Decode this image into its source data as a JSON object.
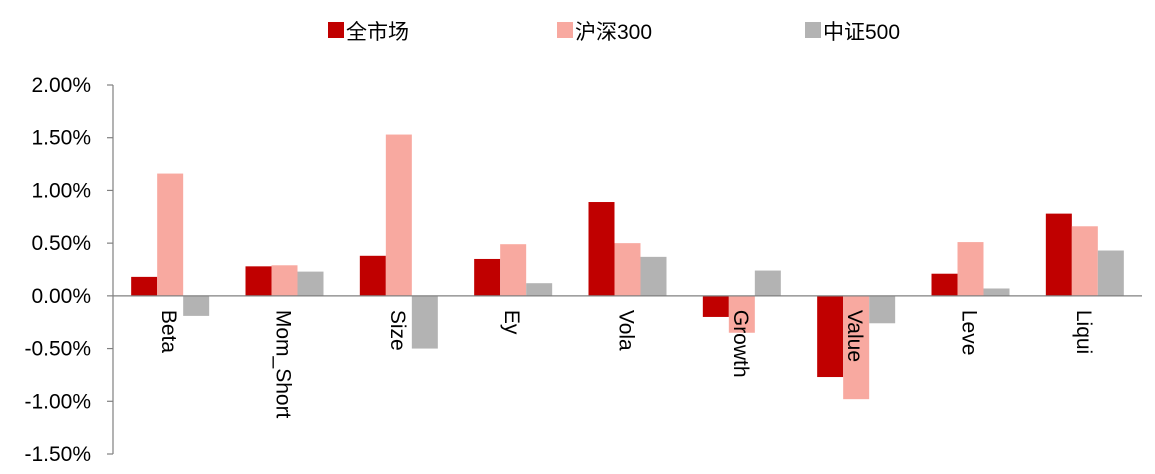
{
  "chart_data": {
    "type": "bar",
    "title": "",
    "xlabel": "",
    "ylabel": "",
    "categories": [
      "Beta",
      "Mom_Short",
      "Size",
      "Ey",
      "Vola",
      "Growth",
      "Value",
      "Leve",
      "Liqui"
    ],
    "series": [
      {
        "name": "全市场",
        "color": "#C00000",
        "values": [
          0.18,
          0.28,
          0.38,
          0.35,
          0.89,
          -0.2,
          -0.77,
          0.21,
          0.78
        ]
      },
      {
        "name": "沪深300",
        "color": "#F8A9A0",
        "values": [
          1.16,
          0.29,
          1.53,
          0.49,
          0.5,
          -0.35,
          -0.98,
          0.51,
          0.66
        ]
      },
      {
        "name": "中证500",
        "color": "#B3B3B3",
        "values": [
          -0.19,
          0.23,
          -0.5,
          0.12,
          0.37,
          0.24,
          -0.26,
          0.07,
          0.43
        ]
      }
    ],
    "ylim": [
      -1.5,
      2.0
    ],
    "yticks": [
      2.0,
      1.5,
      1.0,
      0.5,
      0.0,
      -0.5,
      -1.0,
      -1.5
    ],
    "ytick_labels": [
      "2.00%",
      "1.50%",
      "1.00%",
      "0.50%",
      "0.00%",
      "-0.50%",
      "-1.00%",
      "-1.50%"
    ],
    "grid": false,
    "legend_position": "top-center",
    "x_tick_label_rotation": "vertical"
  }
}
